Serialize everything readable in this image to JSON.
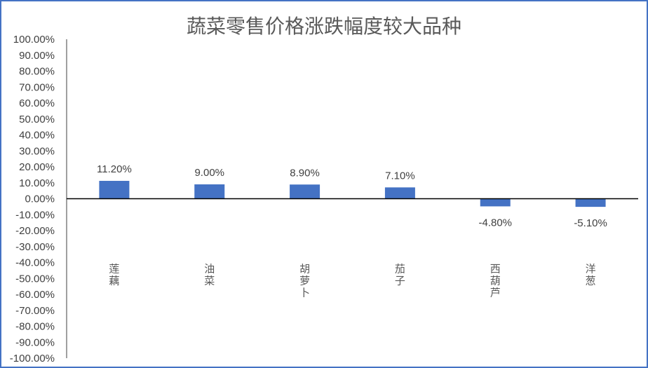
{
  "chart_data": {
    "type": "bar",
    "title": "蔬菜零售价格涨跌幅度较大品种",
    "xlabel": "",
    "ylabel": "",
    "categories": [
      "莲藕",
      "油菜",
      "胡萝卜",
      "茄子",
      "西葫芦",
      "洋葱"
    ],
    "values": [
      11.2,
      9.0,
      8.9,
      7.1,
      -4.8,
      -5.1
    ],
    "data_labels": [
      "11.20%",
      "9.00%",
      "8.90%",
      "7.10%",
      "-4.80%",
      "-5.10%"
    ],
    "ylim": [
      -100,
      100
    ],
    "y_tick_step": 10,
    "y_tick_labels": [
      "100.00%",
      "90.00%",
      "80.00%",
      "70.00%",
      "60.00%",
      "50.00%",
      "40.00%",
      "30.00%",
      "20.00%",
      "10.00%",
      "0.00%",
      "-10.00%",
      "-20.00%",
      "-30.00%",
      "-40.00%",
      "-50.00%",
      "-60.00%",
      "-70.00%",
      "-80.00%",
      "-90.00%",
      "-100.00%"
    ],
    "bar_color": "#4472c4",
    "grid": false,
    "legend": "none"
  }
}
